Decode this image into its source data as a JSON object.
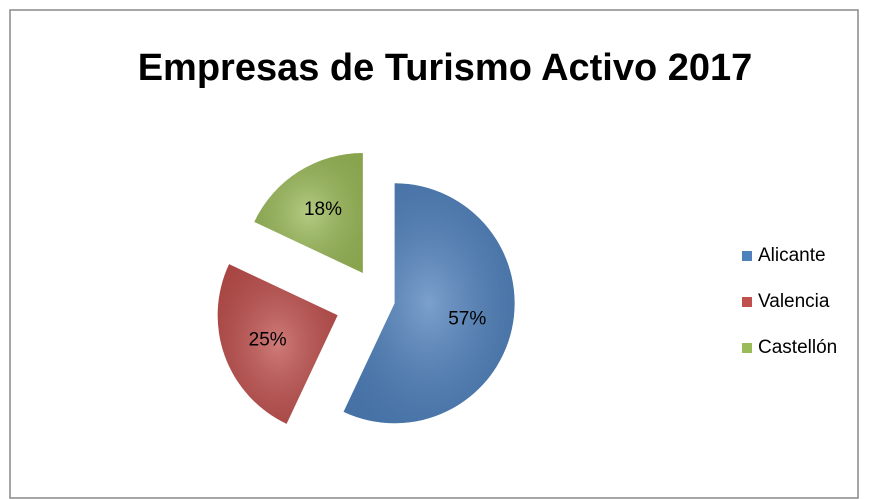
{
  "chart_data": {
    "type": "pie",
    "title": "Empresas de Turismo Activo 2017",
    "categories": [
      "Alicante",
      "Valencia",
      "Castellón"
    ],
    "values": [
      57,
      25,
      18
    ],
    "value_labels": [
      "57%",
      "25%",
      "18%"
    ],
    "colors": [
      "#4f81bd",
      "#c0504d",
      "#9bbb59"
    ],
    "legend": "right"
  }
}
